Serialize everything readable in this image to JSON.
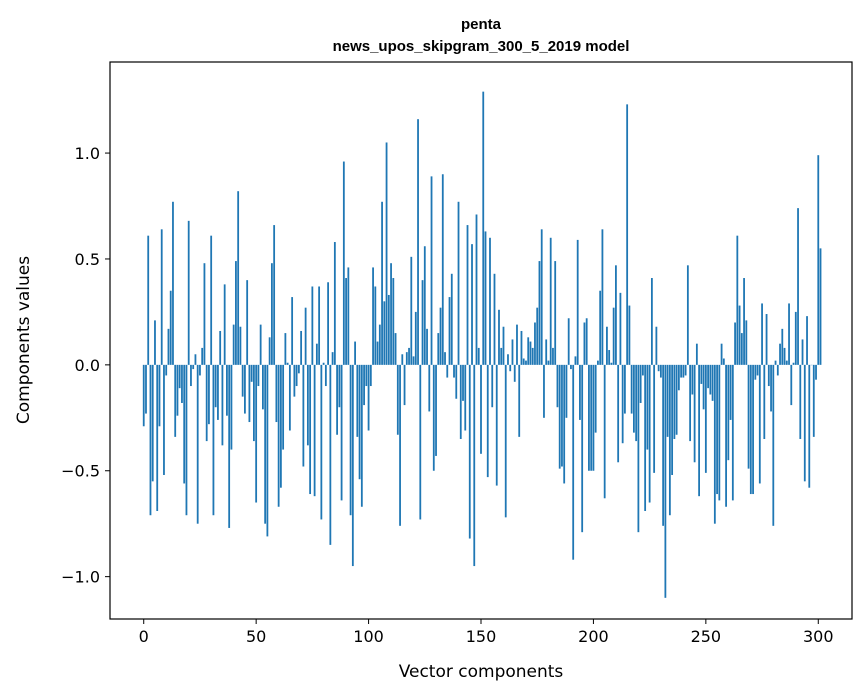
{
  "chart_data": {
    "type": "bar",
    "title": "penta",
    "subtitle": "news_upos_skipgram_300_5_2019 model",
    "xlabel": "Vector components",
    "ylabel": "Components values",
    "xlim": [
      -15,
      315
    ],
    "ylim": [
      -1.2,
      1.43
    ],
    "xticks": [
      0,
      50,
      100,
      150,
      200,
      250,
      300
    ],
    "xtick_labels": [
      "0",
      "50",
      "100",
      "150",
      "200",
      "250",
      "300"
    ],
    "yticks": [
      -1.0,
      -0.5,
      0.0,
      0.5,
      1.0
    ],
    "ytick_labels": [
      "−1.0",
      "−0.5",
      "0.0",
      "0.5",
      "1.0"
    ],
    "bar_color": "#1f77b4",
    "x_start": 0,
    "values": [
      -0.29,
      -0.23,
      0.61,
      -0.71,
      -0.55,
      0.21,
      -0.69,
      -0.29,
      0.64,
      -0.52,
      -0.05,
      0.17,
      0.35,
      0.77,
      -0.34,
      -0.24,
      -0.11,
      -0.18,
      -0.56,
      -0.71,
      0.68,
      -0.1,
      -0.02,
      0.05,
      -0.75,
      -0.05,
      0.08,
      0.48,
      -0.36,
      -0.28,
      0.61,
      -0.71,
      -0.2,
      -0.26,
      0.16,
      -0.38,
      0.38,
      -0.24,
      -0.77,
      -0.4,
      0.19,
      0.49,
      0.82,
      0.18,
      -0.15,
      -0.23,
      0.4,
      -0.27,
      -0.08,
      -0.36,
      -0.65,
      -0.1,
      0.19,
      -0.21,
      -0.75,
      -0.81,
      0.13,
      0.48,
      0.66,
      -0.27,
      -0.67,
      -0.58,
      -0.4,
      0.15,
      0.01,
      -0.31,
      0.32,
      -0.15,
      -0.1,
      -0.04,
      0.16,
      -0.48,
      0.27,
      -0.38,
      -0.61,
      0.37,
      -0.62,
      0.1,
      0.37,
      -0.73,
      0.01,
      -0.1,
      0.39,
      -0.85,
      0.06,
      0.58,
      -0.33,
      -0.2,
      -0.64,
      0.96,
      0.41,
      0.46,
      -0.71,
      -0.95,
      0.11,
      -0.34,
      -0.54,
      -0.67,
      -0.19,
      -0.1,
      -0.31,
      -0.1,
      0.46,
      0.37,
      0.11,
      0.19,
      0.77,
      0.3,
      1.05,
      0.33,
      0.48,
      0.41,
      0.15,
      -0.33,
      -0.76,
      0.05,
      -0.19,
      0.06,
      0.08,
      0.51,
      0.04,
      0.25,
      1.16,
      -0.73,
      0.4,
      0.56,
      0.17,
      -0.22,
      0.89,
      -0.5,
      -0.43,
      0.15,
      0.27,
      0.9,
      0.06,
      -0.06,
      0.32,
      0.43,
      -0.06,
      -0.16,
      0.77,
      -0.35,
      -0.17,
      -0.31,
      0.66,
      -0.82,
      0.57,
      -0.95,
      0.71,
      0.08,
      -0.42,
      1.29,
      0.63,
      -0.53,
      0.6,
      -0.2,
      0.43,
      -0.57,
      0.26,
      0.08,
      0.18,
      -0.72,
      0.05,
      -0.03,
      0.12,
      -0.08,
      0.19,
      -0.34,
      0.16,
      0.03,
      0.02,
      0.13,
      0.11,
      0.08,
      0.2,
      0.27,
      0.49,
      0.64,
      -0.25,
      0.12,
      0.02,
      0.6,
      0.08,
      0.49,
      -0.2,
      -0.49,
      -0.48,
      -0.56,
      -0.25,
      0.22,
      -0.02,
      -0.92,
      0.04,
      0.59,
      -0.26,
      -0.79,
      0.2,
      0.22,
      -0.5,
      -0.5,
      -0.5,
      -0.32,
      0.02,
      0.35,
      0.64,
      -0.63,
      0.18,
      0.07,
      0.01,
      0.27,
      0.47,
      -0.46,
      0.34,
      -0.37,
      -0.23,
      1.23,
      0.28,
      -0.23,
      -0.32,
      -0.36,
      -0.79,
      -0.18,
      -0.05,
      -0.69,
      -0.4,
      -0.65,
      0.41,
      -0.51,
      0.18,
      -0.03,
      -0.06,
      -0.76,
      -1.1,
      -0.34,
      -0.71,
      -0.52,
      -0.35,
      -0.33,
      -0.12,
      -0.06,
      -0.06,
      -0.05,
      0.47,
      -0.36,
      -0.14,
      -0.46,
      0.1,
      -0.62,
      -0.09,
      -0.21,
      -0.51,
      -0.11,
      -0.14,
      -0.17,
      -0.75,
      -0.61,
      -0.64,
      0.1,
      0.03,
      -0.67,
      -0.45,
      -0.26,
      -0.64,
      0.2,
      0.61,
      0.28,
      0.15,
      0.41,
      0.21,
      -0.49,
      -0.61,
      -0.61,
      -0.07,
      -0.05,
      -0.56,
      0.29,
      -0.35,
      0.24,
      -0.1,
      -0.22,
      -0.76,
      0.02,
      -0.05,
      0.1,
      0.17,
      0.08,
      0.02,
      0.29,
      -0.19,
      0.01,
      0.25,
      0.74,
      -0.35,
      0.12,
      -0.55,
      0.23,
      -0.58,
      0.0,
      -0.34,
      -0.07,
      0.99,
      0.55
    ]
  }
}
